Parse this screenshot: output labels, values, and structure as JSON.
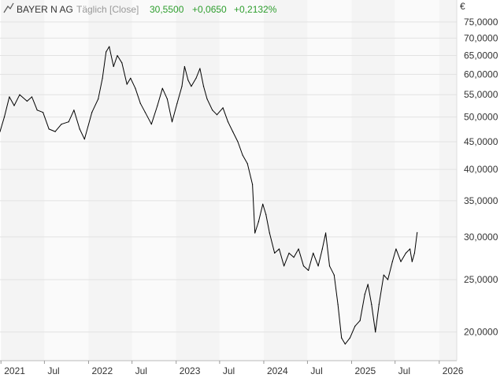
{
  "header": {
    "icon": "line-chart-icon",
    "instrument": "BAYER N AG",
    "mode": "Täglich [Close]",
    "last": "30,5500",
    "change": "+0,0650",
    "change_pct": "+0,2132%",
    "currency": "€",
    "colors": {
      "instrument": "#333333",
      "mode": "#999999",
      "positive": "#2e9e2e"
    }
  },
  "chart_data": {
    "type": "line",
    "title": "",
    "xlabel": "",
    "ylabel": "€",
    "yscale": "log",
    "ylim": [
      17.7,
      77.0
    ],
    "xlim": [
      "2020-12-28",
      "2026-03-15"
    ],
    "grid": true,
    "legend": "none",
    "x_ticks": [
      {
        "date": "2021-01-01",
        "label": "2021"
      },
      {
        "date": "2021-07-01",
        "label": "Jul"
      },
      {
        "date": "2022-01-01",
        "label": "2022"
      },
      {
        "date": "2022-07-01",
        "label": "Jul"
      },
      {
        "date": "2023-01-01",
        "label": "2023"
      },
      {
        "date": "2023-07-01",
        "label": "Jul"
      },
      {
        "date": "2024-01-01",
        "label": "2024"
      },
      {
        "date": "2024-07-01",
        "label": "Jul"
      },
      {
        "date": "2025-01-01",
        "label": "2025"
      },
      {
        "date": "2025-07-01",
        "label": "Jul"
      },
      {
        "date": "2026-01-01",
        "label": "2026"
      }
    ],
    "y_ticks": [
      {
        "value": 20,
        "label": "20,0000"
      },
      {
        "value": 25,
        "label": "25,0000"
      },
      {
        "value": 30,
        "label": "30,0000"
      },
      {
        "value": 35,
        "label": "35,0000"
      },
      {
        "value": 40,
        "label": "40,0000"
      },
      {
        "value": 45,
        "label": "45,0000"
      },
      {
        "value": 50,
        "label": "50,0000"
      },
      {
        "value": 55,
        "label": "55,0000"
      },
      {
        "value": 60,
        "label": "60,0000"
      },
      {
        "value": 65,
        "label": "65,0000"
      },
      {
        "value": 70,
        "label": "70,0000"
      },
      {
        "value": 75,
        "label": "75,0000"
      }
    ],
    "series": [
      {
        "color": "#000000",
        "points": [
          [
            "2020-12-28",
            47.0
          ],
          [
            "2021-01-15",
            50.0
          ],
          [
            "2021-02-05",
            54.5
          ],
          [
            "2021-02-25",
            52.5
          ],
          [
            "2021-03-20",
            55.0
          ],
          [
            "2021-04-20",
            53.5
          ],
          [
            "2021-05-10",
            54.5
          ],
          [
            "2021-06-01",
            51.5
          ],
          [
            "2021-06-25",
            51.0
          ],
          [
            "2021-07-20",
            47.5
          ],
          [
            "2021-08-15",
            47.0
          ],
          [
            "2021-09-10",
            48.5
          ],
          [
            "2021-10-10",
            49.0
          ],
          [
            "2021-11-01",
            51.5
          ],
          [
            "2021-11-25",
            47.5
          ],
          [
            "2021-12-15",
            45.5
          ],
          [
            "2022-01-15",
            51.0
          ],
          [
            "2022-02-10",
            54.0
          ],
          [
            "2022-02-28",
            59.0
          ],
          [
            "2022-03-15",
            66.0
          ],
          [
            "2022-03-28",
            67.5
          ],
          [
            "2022-04-15",
            62.0
          ],
          [
            "2022-05-01",
            65.0
          ],
          [
            "2022-05-20",
            63.0
          ],
          [
            "2022-06-10",
            57.5
          ],
          [
            "2022-06-25",
            59.0
          ],
          [
            "2022-07-15",
            56.5
          ],
          [
            "2022-08-05",
            53.0
          ],
          [
            "2022-08-25",
            51.0
          ],
          [
            "2022-09-20",
            48.5
          ],
          [
            "2022-10-15",
            52.5
          ],
          [
            "2022-11-05",
            56.5
          ],
          [
            "2022-11-25",
            54.0
          ],
          [
            "2022-12-15",
            49.0
          ],
          [
            "2023-01-05",
            53.0
          ],
          [
            "2023-01-25",
            57.0
          ],
          [
            "2023-02-05",
            62.0
          ],
          [
            "2023-02-20",
            58.5
          ],
          [
            "2023-03-05",
            57.0
          ],
          [
            "2023-03-25",
            59.0
          ],
          [
            "2023-04-10",
            61.5
          ],
          [
            "2023-04-25",
            57.0
          ],
          [
            "2023-05-10",
            54.0
          ],
          [
            "2023-06-01",
            51.5
          ],
          [
            "2023-06-20",
            50.5
          ],
          [
            "2023-07-15",
            52.0
          ],
          [
            "2023-08-05",
            49.0
          ],
          [
            "2023-08-25",
            47.0
          ],
          [
            "2023-09-15",
            45.0
          ],
          [
            "2023-10-05",
            42.5
          ],
          [
            "2023-10-25",
            41.0
          ],
          [
            "2023-11-15",
            37.5
          ],
          [
            "2023-11-25",
            30.5
          ],
          [
            "2023-12-10",
            32.0
          ],
          [
            "2023-12-28",
            34.5
          ],
          [
            "2024-01-10",
            33.0
          ],
          [
            "2024-01-25",
            30.5
          ],
          [
            "2024-02-15",
            28.0
          ],
          [
            "2024-03-05",
            28.5
          ],
          [
            "2024-03-25",
            26.5
          ],
          [
            "2024-04-15",
            28.0
          ],
          [
            "2024-05-05",
            27.5
          ],
          [
            "2024-05-25",
            28.5
          ],
          [
            "2024-06-15",
            26.5
          ],
          [
            "2024-07-05",
            26.0
          ],
          [
            "2024-07-25",
            28.0
          ],
          [
            "2024-08-15",
            26.5
          ],
          [
            "2024-09-01",
            28.5
          ],
          [
            "2024-09-15",
            30.5
          ],
          [
            "2024-10-01",
            26.5
          ],
          [
            "2024-10-20",
            25.5
          ],
          [
            "2024-11-05",
            22.5
          ],
          [
            "2024-11-20",
            19.5
          ],
          [
            "2024-12-05",
            19.0
          ],
          [
            "2024-12-25",
            19.5
          ],
          [
            "2025-01-15",
            20.5
          ],
          [
            "2025-02-05",
            21.0
          ],
          [
            "2025-02-25",
            23.5
          ],
          [
            "2025-03-10",
            24.5
          ],
          [
            "2025-03-25",
            22.5
          ],
          [
            "2025-04-10",
            20.0
          ],
          [
            "2025-04-25",
            22.5
          ],
          [
            "2025-05-15",
            25.5
          ],
          [
            "2025-06-01",
            25.0
          ],
          [
            "2025-06-20",
            27.0
          ],
          [
            "2025-07-05",
            28.5
          ],
          [
            "2025-07-25",
            27.0
          ],
          [
            "2025-08-15",
            28.0
          ],
          [
            "2025-09-01",
            28.5
          ],
          [
            "2025-09-10",
            27.0
          ],
          [
            "2025-09-20",
            28.0
          ],
          [
            "2025-10-01",
            30.55
          ]
        ]
      }
    ]
  }
}
